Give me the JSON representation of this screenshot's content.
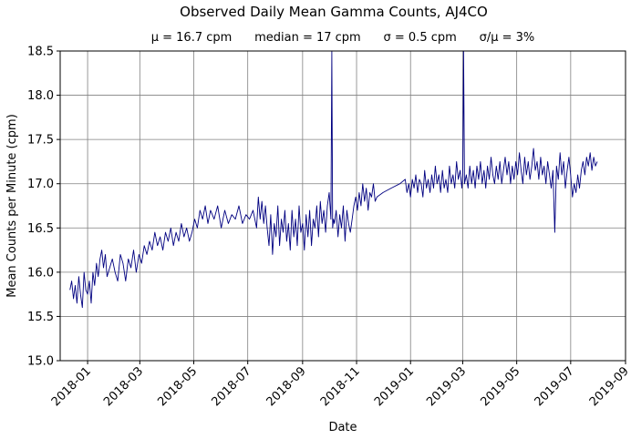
{
  "chart_data": {
    "type": "line",
    "title": "Observed Daily Mean Gamma Counts, AJ4CO",
    "subtitle": "μ = 16.7 cpm      median = 17 cpm      σ = 0.5 cpm      σ/μ = 3%",
    "xlabel": "Date",
    "ylabel": "Mean Counts per Minute (cpm)",
    "xlim": [
      "2017-12-01",
      "2019-09-01"
    ],
    "ylim": [
      15.0,
      18.5
    ],
    "x_ticks": [
      "2018-01",
      "2018-03",
      "2018-05",
      "2018-07",
      "2018-09",
      "2018-11",
      "2019-01",
      "2019-03",
      "2019-05",
      "2019-07",
      "2019-09"
    ],
    "y_ticks": [
      "15.0",
      "15.5",
      "16.0",
      "16.5",
      "17.0",
      "17.5",
      "18.0",
      "18.5"
    ],
    "grid": true,
    "line_color": "#000080",
    "series": [
      {
        "x": [
          "2017-12-12",
          "2017-12-14",
          "2017-12-16",
          "2017-12-18",
          "2017-12-20",
          "2017-12-22",
          "2017-12-24",
          "2017-12-26",
          "2017-12-28",
          "2017-12-30",
          "2018-01-01",
          "2018-01-03",
          "2018-01-05",
          "2018-01-07",
          "2018-01-09",
          "2018-01-11",
          "2018-01-13",
          "2018-01-15",
          "2018-01-17",
          "2018-01-19",
          "2018-01-21",
          "2018-01-23",
          "2018-01-26",
          "2018-01-29",
          "2018-02-01",
          "2018-02-04",
          "2018-02-07",
          "2018-02-10",
          "2018-02-13",
          "2018-02-16",
          "2018-02-19",
          "2018-02-22",
          "2018-02-25",
          "2018-02-28",
          "2018-03-03",
          "2018-03-06",
          "2018-03-09",
          "2018-03-12",
          "2018-03-15",
          "2018-03-18",
          "2018-03-21",
          "2018-03-24",
          "2018-03-27",
          "2018-03-30",
          "2018-04-02",
          "2018-04-05",
          "2018-04-08",
          "2018-04-11",
          "2018-04-14",
          "2018-04-17",
          "2018-04-20",
          "2018-04-23",
          "2018-04-26",
          "2018-04-29",
          "2018-05-02",
          "2018-05-05",
          "2018-05-08",
          "2018-05-11",
          "2018-05-14",
          "2018-05-17",
          "2018-05-20",
          "2018-05-24",
          "2018-05-28",
          "2018-06-01",
          "2018-06-05",
          "2018-06-09",
          "2018-06-13",
          "2018-06-17",
          "2018-06-21",
          "2018-06-25",
          "2018-06-29",
          "2018-07-03",
          "2018-07-07",
          "2018-07-11",
          "2018-07-13",
          "2018-07-15",
          "2018-07-17",
          "2018-07-19",
          "2018-07-21",
          "2018-07-23",
          "2018-07-25",
          "2018-07-27",
          "2018-07-29",
          "2018-07-31",
          "2018-08-02",
          "2018-08-04",
          "2018-08-06",
          "2018-08-08",
          "2018-08-10",
          "2018-08-12",
          "2018-08-14",
          "2018-08-16",
          "2018-08-18",
          "2018-08-20",
          "2018-08-22",
          "2018-08-24",
          "2018-08-26",
          "2018-08-28",
          "2018-08-30",
          "2018-09-01",
          "2018-09-03",
          "2018-09-05",
          "2018-09-07",
          "2018-09-09",
          "2018-09-11",
          "2018-09-13",
          "2018-09-15",
          "2018-09-17",
          "2018-09-19",
          "2018-09-21",
          "2018-09-23",
          "2018-09-25",
          "2018-09-27",
          "2018-09-29",
          "2018-10-01",
          "2018-10-03",
          "2018-10-04",
          "2018-10-05",
          "2018-10-06",
          "2018-10-07",
          "2018-10-09",
          "2018-10-11",
          "2018-10-13",
          "2018-10-15",
          "2018-10-17",
          "2018-10-19",
          "2018-10-21",
          "2018-10-23",
          "2018-10-25",
          "2018-10-27",
          "2018-10-29",
          "2018-10-31",
          "2018-11-02",
          "2018-11-04",
          "2018-11-06",
          "2018-11-08",
          "2018-11-10",
          "2018-11-12",
          "2018-11-14",
          "2018-11-16",
          "2018-11-18",
          "2018-11-20",
          "2018-11-22",
          "2018-11-24",
          "2018-12-01",
          "2018-12-10",
          "2018-12-20",
          "2018-12-26",
          "2018-12-28",
          "2018-12-30",
          "2019-01-01",
          "2019-01-03",
          "2019-01-05",
          "2019-01-07",
          "2019-01-09",
          "2019-01-11",
          "2019-01-13",
          "2019-01-15",
          "2019-01-17",
          "2019-01-19",
          "2019-01-21",
          "2019-01-23",
          "2019-01-25",
          "2019-01-27",
          "2019-01-29",
          "2019-01-31",
          "2019-02-02",
          "2019-02-04",
          "2019-02-06",
          "2019-02-08",
          "2019-02-10",
          "2019-02-12",
          "2019-02-14",
          "2019-02-16",
          "2019-02-18",
          "2019-02-20",
          "2019-02-22",
          "2019-02-24",
          "2019-02-26",
          "2019-02-28",
          "2019-03-01",
          "2019-03-02",
          "2019-03-03",
          "2019-03-05",
          "2019-03-07",
          "2019-03-09",
          "2019-03-11",
          "2019-03-13",
          "2019-03-15",
          "2019-03-17",
          "2019-03-19",
          "2019-03-21",
          "2019-03-23",
          "2019-03-25",
          "2019-03-27",
          "2019-03-29",
          "2019-03-31",
          "2019-04-02",
          "2019-04-04",
          "2019-04-06",
          "2019-04-08",
          "2019-04-10",
          "2019-04-12",
          "2019-04-14",
          "2019-04-16",
          "2019-04-18",
          "2019-04-20",
          "2019-04-22",
          "2019-04-24",
          "2019-04-26",
          "2019-04-28",
          "2019-04-30",
          "2019-05-02",
          "2019-05-04",
          "2019-05-06",
          "2019-05-08",
          "2019-05-10",
          "2019-05-12",
          "2019-05-14",
          "2019-05-16",
          "2019-05-18",
          "2019-05-20",
          "2019-05-22",
          "2019-05-24",
          "2019-05-26",
          "2019-05-28",
          "2019-05-30",
          "2019-06-01",
          "2019-06-03",
          "2019-06-05",
          "2019-06-07",
          "2019-06-09",
          "2019-06-11",
          "2019-06-13",
          "2019-06-15",
          "2019-06-17",
          "2019-06-19",
          "2019-06-21",
          "2019-06-23",
          "2019-06-25",
          "2019-06-27",
          "2019-06-29",
          "2019-07-01",
          "2019-07-03",
          "2019-07-05",
          "2019-07-07",
          "2019-07-09",
          "2019-07-11",
          "2019-07-13",
          "2019-07-15",
          "2019-07-17",
          "2019-07-19",
          "2019-07-21",
          "2019-07-23",
          "2019-07-25",
          "2019-07-27",
          "2019-07-29",
          "2019-07-31"
        ],
        "y": [
          15.8,
          15.9,
          15.7,
          15.85,
          15.65,
          15.95,
          15.75,
          15.6,
          16.0,
          15.8,
          15.75,
          15.9,
          15.65,
          16.0,
          15.85,
          16.1,
          15.95,
          16.15,
          16.25,
          16.05,
          16.2,
          15.95,
          16.05,
          16.15,
          16.0,
          15.9,
          16.2,
          16.1,
          15.9,
          16.15,
          16.05,
          16.25,
          16.0,
          16.2,
          16.1,
          16.3,
          16.2,
          16.35,
          16.25,
          16.45,
          16.3,
          16.4,
          16.25,
          16.45,
          16.35,
          16.5,
          16.3,
          16.45,
          16.35,
          16.55,
          16.4,
          16.5,
          16.35,
          16.45,
          16.6,
          16.5,
          16.7,
          16.6,
          16.75,
          16.55,
          16.7,
          16.6,
          16.75,
          16.5,
          16.7,
          16.55,
          16.65,
          16.6,
          16.75,
          16.55,
          16.65,
          16.6,
          16.7,
          16.5,
          16.85,
          16.6,
          16.8,
          16.55,
          16.75,
          16.5,
          16.3,
          16.65,
          16.2,
          16.55,
          16.4,
          16.75,
          16.3,
          16.6,
          16.45,
          16.7,
          16.35,
          16.55,
          16.25,
          16.7,
          16.4,
          16.6,
          16.3,
          16.75,
          16.45,
          16.55,
          16.25,
          16.65,
          16.4,
          16.7,
          16.3,
          16.6,
          16.5,
          16.75,
          16.4,
          16.8,
          16.55,
          16.7,
          16.45,
          16.75,
          16.9,
          16.6,
          18.55,
          16.5,
          16.6,
          16.55,
          16.7,
          16.4,
          16.65,
          16.5,
          16.75,
          16.35,
          16.7,
          16.55,
          16.45,
          16.6,
          16.75,
          16.85,
          16.7,
          16.9,
          16.75,
          17.0,
          16.8,
          16.95,
          16.7,
          16.9,
          16.85,
          17.0,
          16.8,
          16.85,
          16.9,
          16.95,
          17.0,
          17.05,
          16.9,
          17.0,
          16.85,
          17.05,
          16.95,
          17.1,
          16.9,
          17.05,
          17.0,
          16.85,
          17.15,
          16.95,
          17.05,
          16.9,
          17.1,
          16.95,
          17.2,
          17.0,
          17.1,
          16.9,
          17.15,
          16.95,
          17.05,
          16.9,
          17.2,
          17.0,
          17.1,
          16.95,
          17.25,
          17.05,
          17.15,
          16.95,
          17.1,
          18.55,
          17.0,
          17.1,
          16.95,
          17.2,
          17.0,
          17.15,
          16.95,
          17.2,
          17.05,
          17.25,
          17.0,
          17.15,
          16.95,
          17.2,
          17.05,
          17.3,
          17.1,
          17.0,
          17.2,
          17.05,
          17.25,
          17.0,
          17.15,
          17.3,
          17.1,
          17.25,
          17.0,
          17.2,
          17.05,
          17.25,
          17.1,
          17.35,
          17.15,
          17.0,
          17.3,
          17.1,
          17.25,
          17.05,
          17.2,
          17.4,
          17.15,
          17.25,
          17.05,
          17.3,
          17.1,
          17.2,
          17.0,
          17.25,
          17.1,
          16.95,
          17.15,
          16.45,
          17.2,
          17.05,
          17.35,
          17.1,
          17.25,
          16.95,
          17.15,
          17.3,
          17.1,
          16.85,
          17.0,
          16.9,
          17.1,
          16.95,
          17.15,
          17.25,
          17.1,
          17.3,
          17.2,
          17.35,
          17.15,
          17.3,
          17.2,
          17.25
        ]
      }
    ]
  }
}
